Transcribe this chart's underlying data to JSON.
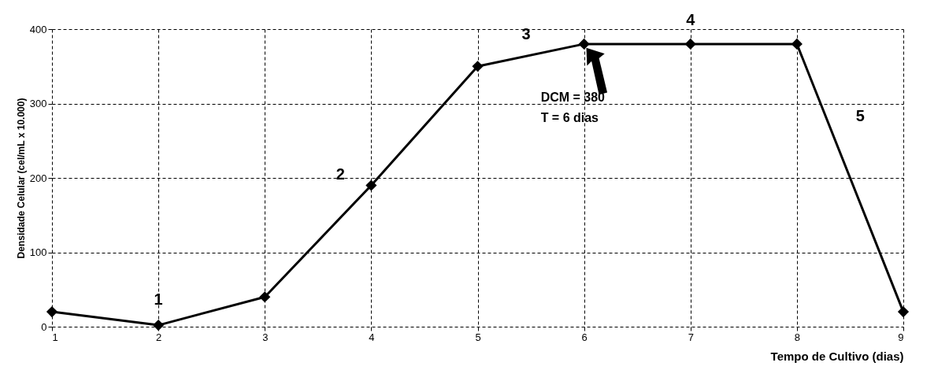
{
  "chart_data": {
    "type": "line",
    "xlabel": "Tempo de Cultivo (dias)",
    "ylabel": "Densidade Celular (cel/mL x 10.000)",
    "x": [
      1,
      2,
      3,
      4,
      5,
      6,
      7,
      8,
      9
    ],
    "series": [
      {
        "color": "#000000",
        "values": [
          20,
          2,
          40,
          190,
          350,
          380,
          380,
          380,
          20
        ]
      }
    ],
    "xlim": [
      1,
      9
    ],
    "xticks": [
      1,
      2,
      3,
      4,
      5,
      6,
      7,
      8,
      9
    ],
    "ylim": [
      0,
      400
    ],
    "yticks": [
      0,
      100,
      200,
      300,
      400
    ],
    "grid": true,
    "marker": "diamond",
    "line_style": "solid",
    "annotations": [
      {
        "text": "1",
        "x": 2,
        "y": 2
      },
      {
        "text": "2",
        "x": 3.8,
        "y": 160
      },
      {
        "text": "3",
        "x": 5.5,
        "y": 365
      },
      {
        "text": "4",
        "x": 7,
        "y": 380
      },
      {
        "text": "5",
        "x": 8.3,
        "y": 272
      },
      "DCM = 380\nT = 6 dias"
    ]
  }
}
